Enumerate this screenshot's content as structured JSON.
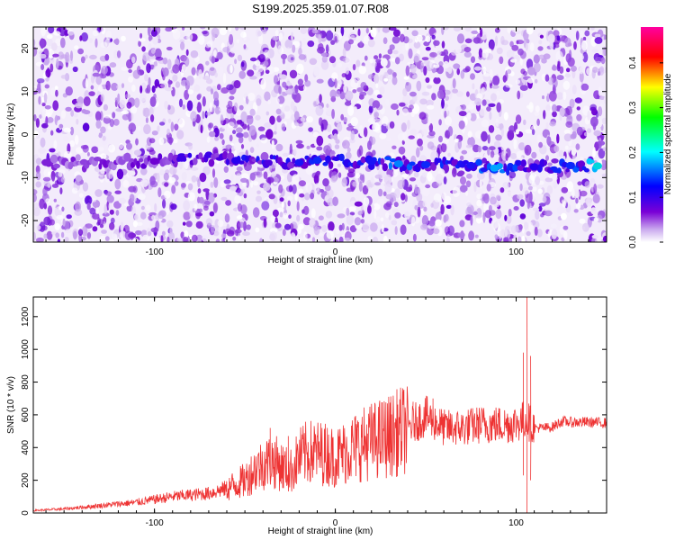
{
  "title": "S199.2025.359.01.07.R08",
  "chart_data": [
    {
      "type": "heatmap",
      "title": "S199.2025.359.01.07.R08",
      "xlabel": "Height of straight line (km)",
      "ylabel": "Frequency (Hz)",
      "xlim": [
        -167,
        150
      ],
      "ylim": [
        -25,
        25
      ],
      "x_ticks": [
        "-100",
        "0",
        "100"
      ],
      "y_ticks": [
        "-20",
        "-10",
        "0",
        "10",
        "20"
      ],
      "colorbar": {
        "label": "Normalized spectral amplitude",
        "range": [
          0.0,
          0.48
        ],
        "ticks": [
          "0.0",
          "0.1",
          "0.2",
          "0.3",
          "0.4"
        ],
        "colormap": [
          "#ffffff",
          "#7a00d6",
          "#0000ff",
          "#00ffff",
          "#00ff00",
          "#ffff00",
          "#ff0000",
          "#ff00a0"
        ]
      },
      "band": {
        "description_frequency_hz": -7,
        "points": [
          {
            "x": -160,
            "y": -6.5,
            "v": 0.12
          },
          {
            "x": -100,
            "y": -6.2,
            "v": 0.14
          },
          {
            "x": -85,
            "y": -5.5,
            "v": 0.18
          },
          {
            "x": -55,
            "y": -6.0,
            "v": 0.2
          },
          {
            "x": -20,
            "y": -6.5,
            "v": 0.22
          },
          {
            "x": -10,
            "y": -6.0,
            "v": 0.24
          },
          {
            "x": 20,
            "y": -6.3,
            "v": 0.22
          },
          {
            "x": 35,
            "y": -6.8,
            "v": 0.3
          },
          {
            "x": 50,
            "y": -7.0,
            "v": 0.24
          },
          {
            "x": 75,
            "y": -7.2,
            "v": 0.22
          },
          {
            "x": 88,
            "y": -7.8,
            "v": 0.32
          },
          {
            "x": 110,
            "y": -7.5,
            "v": 0.2
          },
          {
            "x": 130,
            "y": -7.2,
            "v": 0.24
          },
          {
            "x": 145,
            "y": -7.3,
            "v": 0.36
          }
        ]
      }
    },
    {
      "type": "line",
      "xlabel": "Height of straight line (km)",
      "ylabel": "SNR (10 * v/v)",
      "xlim": [
        -167,
        150
      ],
      "ylim": [
        0,
        1320
      ],
      "x_ticks": [
        "-100",
        "0",
        "100"
      ],
      "y_ticks": [
        "0",
        "200",
        "400",
        "600",
        "800",
        "1000",
        "1200"
      ],
      "color": "#ee3333",
      "series": [
        {
          "x": [
            -167,
            -150,
            -130,
            -110,
            -90,
            -70,
            -60,
            -50,
            -45,
            -40,
            -35,
            -30,
            -25,
            -20,
            -15,
            -10,
            -5,
            0,
            10,
            20,
            30,
            40,
            45,
            50,
            55,
            60,
            70,
            80,
            90,
            95,
            100,
            103,
            106,
            108,
            110,
            115,
            120,
            125,
            130,
            140,
            150
          ],
          "y": [
            15,
            25,
            45,
            65,
            100,
            120,
            150,
            200,
            260,
            300,
            320,
            290,
            250,
            340,
            370,
            370,
            360,
            340,
            400,
            440,
            470,
            520,
            560,
            590,
            560,
            520,
            520,
            540,
            540,
            540,
            550,
            560,
            580,
            540,
            520,
            520,
            525,
            560,
            555,
            555,
            550
          ]
        }
      ],
      "spikes": [
        {
          "x": -36,
          "y": 520
        },
        {
          "x": -26,
          "y": 470
        },
        {
          "x": -10,
          "y": 460
        },
        {
          "x": 43,
          "y": 680
        },
        {
          "x": 54,
          "y": 700
        },
        {
          "x": 104,
          "y": 980
        },
        {
          "x": 106,
          "y": 1320
        },
        {
          "x": 108,
          "y": 960
        }
      ],
      "dips": [
        {
          "x": 104,
          "y": 230
        },
        {
          "x": 106,
          "y": 0
        },
        {
          "x": 108,
          "y": 200
        }
      ]
    }
  ]
}
